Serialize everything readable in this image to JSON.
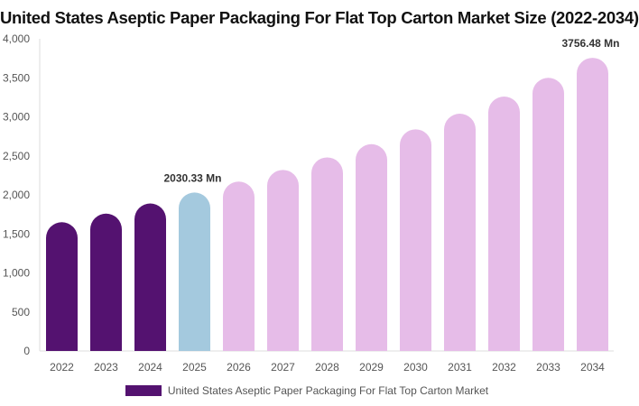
{
  "chart_data": {
    "type": "bar",
    "title": "United States Aseptic Paper Packaging For Flat Top Carton Market Size (2022-2034)",
    "categories": [
      "2022",
      "2023",
      "2024",
      "2025",
      "2026",
      "2027",
      "2028",
      "2029",
      "2030",
      "2031",
      "2032",
      "2033",
      "2034"
    ],
    "series": [
      {
        "name": "United States Aseptic Paper Packaging For Flat Top Carton Market",
        "values": [
          1650,
          1760,
          1890,
          2030.33,
          2170,
          2320,
          2480,
          2650,
          2840,
          3040,
          3260,
          3500,
          3756.48
        ]
      }
    ],
    "ylim": [
      0,
      4000
    ],
    "yticks": [
      0,
      500,
      1000,
      1500,
      2000,
      2500,
      3000,
      3500,
      4000
    ],
    "ytick_labels": [
      "0",
      "500",
      "1,000",
      "1,500",
      "2,000",
      "2,500",
      "3,000",
      "3,500",
      "4,000"
    ],
    "bar_colors": [
      "#541270",
      "#541270",
      "#541270",
      "#a4c9de",
      "#e6bce8",
      "#e6bce8",
      "#e6bce8",
      "#e6bce8",
      "#e6bce8",
      "#e6bce8",
      "#e6bce8",
      "#e6bce8",
      "#e6bce8"
    ],
    "legend_color": "#541270",
    "legend_position": "bottom",
    "grid": false,
    "annotations": [
      {
        "index": 3,
        "text": "2030.33 Mn"
      },
      {
        "index": 12,
        "text": "3756.48 Mn"
      }
    ]
  }
}
